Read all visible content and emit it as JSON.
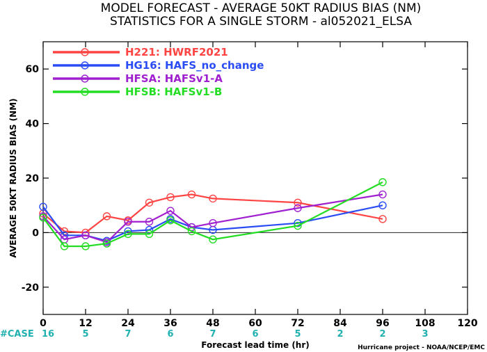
{
  "chart_data": {
    "type": "line",
    "title": "MODEL FORECAST - AVERAGE 50KT RADIUS BIAS (NM)",
    "subtitle": "STATISTICS FOR A SINGLE STORM - al052021_ELSA",
    "xlabel": "Forecast lead time (hr)",
    "ylabel": "AVERAGE 50KT RADIUS BIAS (NM)",
    "xlim": [
      0,
      120
    ],
    "ylim": [
      -30,
      70
    ],
    "xticks": [
      0,
      12,
      24,
      36,
      48,
      60,
      72,
      84,
      96,
      108,
      120
    ],
    "yticks": [
      -20,
      0,
      20,
      40,
      60
    ],
    "zero_line": true,
    "legend_position": "top-left",
    "case_label": "#CASE",
    "cases": [
      16,
      5,
      7,
      6,
      7,
      6,
      5,
      2,
      2,
      3
    ],
    "credit": "Hurricane project - NOAA/NCEP/EMC",
    "series": [
      {
        "name": "H221: HWRF2021",
        "color": "#ff4444",
        "x": [
          0,
          6,
          12,
          18,
          24,
          30,
          36,
          42,
          48,
          72,
          96
        ],
        "y": [
          7,
          0.5,
          0,
          6,
          4.5,
          11,
          13,
          14,
          12.5,
          11,
          5
        ]
      },
      {
        "name": "HG16: HAFS_no_change",
        "color": "#2a4cf5",
        "x": [
          0,
          6,
          12,
          18,
          24,
          30,
          36,
          42,
          48,
          72,
          96
        ],
        "y": [
          9.5,
          -1,
          -1,
          -3,
          0.5,
          1,
          5,
          2,
          1,
          3.5,
          10
        ]
      },
      {
        "name": "HFSA: HAFSv1-A",
        "color": "#a020d0",
        "x": [
          0,
          6,
          12,
          18,
          24,
          30,
          36,
          42,
          48,
          72,
          96
        ],
        "y": [
          6,
          -2.5,
          -1,
          -3.5,
          4,
          4,
          8,
          2,
          3.5,
          9,
          14
        ]
      },
      {
        "name": "HFSB: HAFSv1-B",
        "color": "#22dd22",
        "x": [
          0,
          6,
          12,
          18,
          24,
          30,
          36,
          42,
          48,
          72,
          96
        ],
        "y": [
          5.5,
          -5,
          -5,
          -4,
          -0.5,
          -0.5,
          4.5,
          0.5,
          -2.5,
          2.5,
          18.5
        ]
      }
    ]
  }
}
